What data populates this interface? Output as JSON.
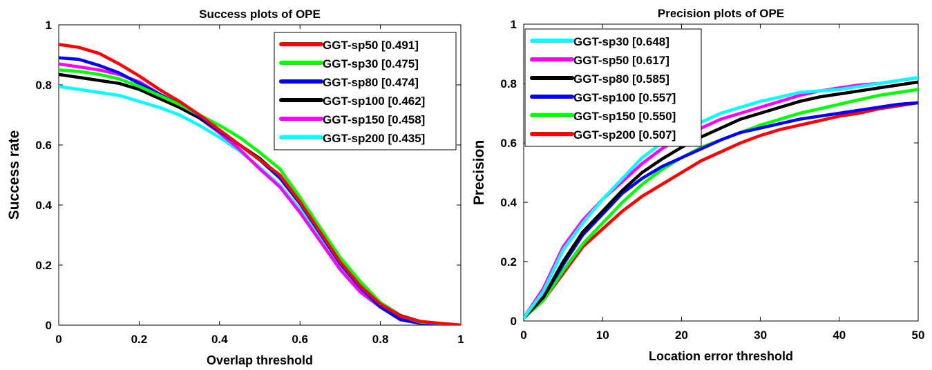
{
  "chart_data": [
    {
      "type": "line",
      "title": "Success plots of OPE",
      "xlabel": "Overlap threshold",
      "ylabel": "Success rate",
      "xlim": [
        0,
        1
      ],
      "ylim": [
        0,
        1
      ],
      "xticks": [
        0,
        0.2,
        0.4,
        0.6,
        0.8,
        1
      ],
      "yticks": [
        0,
        0.2,
        0.4,
        0.6,
        0.8,
        1
      ],
      "xtick_labels": [
        "0",
        "0.2",
        "0.4",
        "0.6",
        "0.8",
        "1"
      ],
      "ytick_labels": [
        "0",
        "0.2",
        "0.4",
        "0.6",
        "0.8",
        "1"
      ],
      "grid": false,
      "legend_position": "top-right",
      "x": [
        0,
        0.05,
        0.1,
        0.15,
        0.2,
        0.25,
        0.3,
        0.35,
        0.4,
        0.45,
        0.5,
        0.55,
        0.6,
        0.65,
        0.7,
        0.75,
        0.8,
        0.85,
        0.9,
        0.95,
        1
      ],
      "series": [
        {
          "name": "GGT-sp50 [0.491]",
          "color": "#ff0000",
          "values": [
            0.935,
            0.925,
            0.905,
            0.87,
            0.83,
            0.785,
            0.745,
            0.7,
            0.65,
            0.6,
            0.55,
            0.5,
            0.41,
            0.31,
            0.21,
            0.13,
            0.07,
            0.03,
            0.012,
            0.006,
            0.0
          ]
        },
        {
          "name": "GGT-sp30 [0.475]",
          "color": "#00ff00",
          "values": [
            0.85,
            0.845,
            0.835,
            0.82,
            0.795,
            0.765,
            0.735,
            0.7,
            0.665,
            0.625,
            0.575,
            0.52,
            0.425,
            0.325,
            0.225,
            0.145,
            0.075,
            0.03,
            0.01,
            0.005,
            0.0
          ]
        },
        {
          "name": "GGT-sp80 [0.474]",
          "color": "#0000ff",
          "values": [
            0.89,
            0.885,
            0.865,
            0.84,
            0.805,
            0.77,
            0.735,
            0.695,
            0.645,
            0.6,
            0.55,
            0.49,
            0.405,
            0.305,
            0.205,
            0.125,
            0.06,
            0.018,
            0.006,
            0.003,
            0.0
          ]
        },
        {
          "name": "GGT-sp100 [0.462]",
          "color": "#000000",
          "values": [
            0.835,
            0.825,
            0.815,
            0.805,
            0.785,
            0.755,
            0.725,
            0.69,
            0.645,
            0.6,
            0.555,
            0.495,
            0.41,
            0.315,
            0.22,
            0.14,
            0.075,
            0.032,
            0.012,
            0.005,
            0.0
          ]
        },
        {
          "name": "GGT-sp150 [0.458]",
          "color": "#ff00ff",
          "values": [
            0.87,
            0.86,
            0.85,
            0.835,
            0.81,
            0.77,
            0.735,
            0.69,
            0.64,
            0.585,
            0.52,
            0.46,
            0.375,
            0.28,
            0.185,
            0.11,
            0.06,
            0.025,
            0.01,
            0.004,
            0.0
          ]
        },
        {
          "name": "GGT-sp200 [0.435]",
          "color": "#00ffff",
          "values": [
            0.795,
            0.785,
            0.775,
            0.765,
            0.745,
            0.725,
            0.7,
            0.665,
            0.625,
            0.58,
            0.525,
            0.465,
            0.385,
            0.29,
            0.195,
            0.115,
            0.062,
            0.025,
            0.01,
            0.005,
            0.0
          ]
        }
      ]
    },
    {
      "type": "line",
      "title": "Precision plots of OPE",
      "xlabel": "Location error threshold",
      "ylabel": "Precision",
      "xlim": [
        0,
        50
      ],
      "ylim": [
        0,
        1
      ],
      "xticks": [
        0,
        10,
        20,
        30,
        40,
        50
      ],
      "yticks": [
        0,
        0.2,
        0.4,
        0.6,
        0.8,
        1
      ],
      "xtick_labels": [
        "0",
        "10",
        "20",
        "30",
        "40",
        "50"
      ],
      "ytick_labels": [
        "0",
        "0.2",
        "0.4",
        "0.6",
        "0.8",
        "1"
      ],
      "grid": false,
      "legend_position": "top-left",
      "x": [
        0,
        2.5,
        5,
        7.5,
        10,
        12.5,
        15,
        17.5,
        20,
        22.5,
        25,
        27.5,
        30,
        32.5,
        35,
        37.5,
        40,
        42.5,
        45,
        47.5,
        50
      ],
      "series": [
        {
          "name": "GGT-sp30 [0.648]",
          "color": "#00ffff",
          "values": [
            0.01,
            0.1,
            0.24,
            0.33,
            0.41,
            0.48,
            0.55,
            0.6,
            0.64,
            0.67,
            0.7,
            0.72,
            0.74,
            0.755,
            0.77,
            0.775,
            0.78,
            0.79,
            0.8,
            0.81,
            0.82
          ]
        },
        {
          "name": "GGT-sp50 [0.617]",
          "color": "#ff00ff",
          "values": [
            0.01,
            0.11,
            0.25,
            0.34,
            0.41,
            0.47,
            0.53,
            0.58,
            0.62,
            0.65,
            0.68,
            0.7,
            0.72,
            0.74,
            0.76,
            0.775,
            0.785,
            0.795,
            0.8,
            0.81,
            0.82
          ]
        },
        {
          "name": "GGT-sp80 [0.585]",
          "color": "#000000",
          "values": [
            0.01,
            0.08,
            0.2,
            0.3,
            0.37,
            0.44,
            0.5,
            0.545,
            0.585,
            0.62,
            0.65,
            0.68,
            0.7,
            0.72,
            0.74,
            0.755,
            0.765,
            0.775,
            0.785,
            0.795,
            0.805
          ]
        },
        {
          "name": "GGT-sp100 [0.557]",
          "color": "#0000ff",
          "values": [
            0.01,
            0.08,
            0.19,
            0.29,
            0.36,
            0.43,
            0.48,
            0.52,
            0.55,
            0.58,
            0.61,
            0.635,
            0.65,
            0.665,
            0.68,
            0.69,
            0.7,
            0.71,
            0.72,
            0.73,
            0.735
          ]
        },
        {
          "name": "GGT-sp150 [0.550]",
          "color": "#00ff00",
          "values": [
            0.01,
            0.07,
            0.17,
            0.26,
            0.33,
            0.4,
            0.46,
            0.51,
            0.55,
            0.585,
            0.61,
            0.635,
            0.66,
            0.68,
            0.7,
            0.715,
            0.73,
            0.745,
            0.76,
            0.77,
            0.78
          ]
        },
        {
          "name": "GGT-sp200 [0.507]",
          "color": "#ff0000",
          "values": [
            0.01,
            0.07,
            0.16,
            0.25,
            0.31,
            0.37,
            0.42,
            0.46,
            0.5,
            0.54,
            0.57,
            0.6,
            0.625,
            0.645,
            0.66,
            0.675,
            0.69,
            0.7,
            0.715,
            0.725,
            0.735
          ]
        }
      ]
    }
  ]
}
